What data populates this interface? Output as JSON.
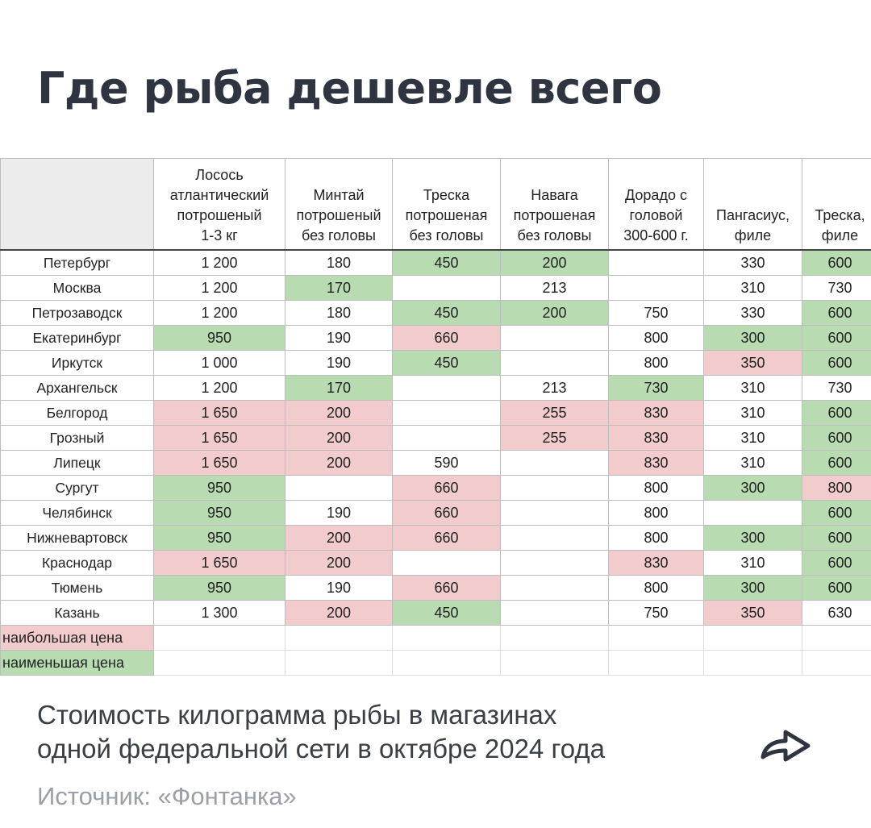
{
  "title": "Где рыба дешевле всего",
  "table": {
    "headers": [
      "",
      "Лосось\nатлантический\nпотрошеный\n1-3 кг",
      "Минтай\nпотрошеный\nбез головы",
      "Треска\nпотрошеная\nбез головы",
      "Навага\nпотрошеная\nбез головы",
      "Дорадо с\nголовой\n300-600 г.",
      "Пангасиус,\nфиле",
      "Треска,\nфиле"
    ],
    "rows": [
      {
        "city": "Петербург",
        "cells": [
          {
            "v": "1 200",
            "c": ""
          },
          {
            "v": "180",
            "c": ""
          },
          {
            "v": "450",
            "c": "lo"
          },
          {
            "v": "200",
            "c": "lo"
          },
          {
            "v": "",
            "c": ""
          },
          {
            "v": "330",
            "c": ""
          },
          {
            "v": "600",
            "c": "lo"
          }
        ]
      },
      {
        "city": "Москва",
        "cells": [
          {
            "v": "1 200",
            "c": ""
          },
          {
            "v": "170",
            "c": "lo"
          },
          {
            "v": "",
            "c": ""
          },
          {
            "v": "213",
            "c": ""
          },
          {
            "v": "",
            "c": ""
          },
          {
            "v": "310",
            "c": ""
          },
          {
            "v": "730",
            "c": ""
          }
        ]
      },
      {
        "city": "Петрозаводск",
        "cells": [
          {
            "v": "1 200",
            "c": ""
          },
          {
            "v": "180",
            "c": ""
          },
          {
            "v": "450",
            "c": "lo"
          },
          {
            "v": "200",
            "c": "lo"
          },
          {
            "v": "750",
            "c": ""
          },
          {
            "v": "330",
            "c": ""
          },
          {
            "v": "600",
            "c": "lo"
          }
        ]
      },
      {
        "city": "Екатеринбург",
        "cells": [
          {
            "v": "950",
            "c": "lo"
          },
          {
            "v": "190",
            "c": ""
          },
          {
            "v": "660",
            "c": "hi"
          },
          {
            "v": "",
            "c": ""
          },
          {
            "v": "800",
            "c": ""
          },
          {
            "v": "300",
            "c": "lo"
          },
          {
            "v": "600",
            "c": "lo"
          }
        ]
      },
      {
        "city": "Иркутск",
        "cells": [
          {
            "v": "1 000",
            "c": ""
          },
          {
            "v": "190",
            "c": ""
          },
          {
            "v": "450",
            "c": "lo"
          },
          {
            "v": "",
            "c": ""
          },
          {
            "v": "800",
            "c": ""
          },
          {
            "v": "350",
            "c": "hi"
          },
          {
            "v": "600",
            "c": "lo"
          }
        ]
      },
      {
        "city": "Архангельск",
        "cells": [
          {
            "v": "1 200",
            "c": ""
          },
          {
            "v": "170",
            "c": "lo"
          },
          {
            "v": "",
            "c": ""
          },
          {
            "v": "213",
            "c": ""
          },
          {
            "v": "730",
            "c": "lo"
          },
          {
            "v": "310",
            "c": ""
          },
          {
            "v": "730",
            "c": ""
          }
        ]
      },
      {
        "city": "Белгород",
        "cells": [
          {
            "v": "1 650",
            "c": "hi"
          },
          {
            "v": "200",
            "c": "hi"
          },
          {
            "v": "",
            "c": ""
          },
          {
            "v": "255",
            "c": "hi"
          },
          {
            "v": "830",
            "c": "hi"
          },
          {
            "v": "310",
            "c": ""
          },
          {
            "v": "600",
            "c": "lo"
          }
        ]
      },
      {
        "city": "Грозный",
        "cells": [
          {
            "v": "1 650",
            "c": "hi"
          },
          {
            "v": "200",
            "c": "hi"
          },
          {
            "v": "",
            "c": ""
          },
          {
            "v": "255",
            "c": "hi"
          },
          {
            "v": "830",
            "c": "hi"
          },
          {
            "v": "310",
            "c": ""
          },
          {
            "v": "600",
            "c": "lo"
          }
        ]
      },
      {
        "city": "Липецк",
        "cells": [
          {
            "v": "1 650",
            "c": "hi"
          },
          {
            "v": "200",
            "c": "hi"
          },
          {
            "v": "590",
            "c": ""
          },
          {
            "v": "",
            "c": ""
          },
          {
            "v": "830",
            "c": "hi"
          },
          {
            "v": "310",
            "c": ""
          },
          {
            "v": "600",
            "c": "lo"
          }
        ]
      },
      {
        "city": "Сургут",
        "cells": [
          {
            "v": "950",
            "c": "lo"
          },
          {
            "v": "",
            "c": ""
          },
          {
            "v": "660",
            "c": "hi"
          },
          {
            "v": "",
            "c": ""
          },
          {
            "v": "800",
            "c": ""
          },
          {
            "v": "300",
            "c": "lo"
          },
          {
            "v": "800",
            "c": "hi"
          }
        ]
      },
      {
        "city": "Челябинск",
        "cells": [
          {
            "v": "950",
            "c": "lo"
          },
          {
            "v": "190",
            "c": ""
          },
          {
            "v": "660",
            "c": "hi"
          },
          {
            "v": "",
            "c": ""
          },
          {
            "v": "800",
            "c": ""
          },
          {
            "v": "",
            "c": ""
          },
          {
            "v": "600",
            "c": "lo"
          }
        ]
      },
      {
        "city": "Нижневартовск",
        "cells": [
          {
            "v": "950",
            "c": "lo"
          },
          {
            "v": "200",
            "c": "hi"
          },
          {
            "v": "660",
            "c": "hi"
          },
          {
            "v": "",
            "c": ""
          },
          {
            "v": "800",
            "c": ""
          },
          {
            "v": "300",
            "c": "lo"
          },
          {
            "v": "600",
            "c": "lo"
          }
        ]
      },
      {
        "city": "Краснодар",
        "cells": [
          {
            "v": "1 650",
            "c": "hi"
          },
          {
            "v": "200",
            "c": "hi"
          },
          {
            "v": "",
            "c": ""
          },
          {
            "v": "",
            "c": ""
          },
          {
            "v": "830",
            "c": "hi"
          },
          {
            "v": "310",
            "c": ""
          },
          {
            "v": "600",
            "c": "lo"
          }
        ]
      },
      {
        "city": "Тюмень",
        "cells": [
          {
            "v": "950",
            "c": "lo"
          },
          {
            "v": "190",
            "c": ""
          },
          {
            "v": "660",
            "c": "hi"
          },
          {
            "v": "",
            "c": ""
          },
          {
            "v": "800",
            "c": ""
          },
          {
            "v": "300",
            "c": "lo"
          },
          {
            "v": "600",
            "c": "lo"
          }
        ]
      },
      {
        "city": "Казань",
        "cells": [
          {
            "v": "1 300",
            "c": ""
          },
          {
            "v": "200",
            "c": "hi"
          },
          {
            "v": "450",
            "c": "lo"
          },
          {
            "v": "",
            "c": ""
          },
          {
            "v": "750",
            "c": ""
          },
          {
            "v": "350",
            "c": "hi"
          },
          {
            "v": "630",
            "c": ""
          }
        ]
      }
    ],
    "legend": [
      {
        "label": "наибольшая цена",
        "c": "hi"
      },
      {
        "label": "наименьшая цена",
        "c": "lo"
      }
    ]
  },
  "caption": {
    "line1": "Стоимость килограмма рыбы в магазинах",
    "line2": "одной федеральной сети в октябре 2024 года"
  },
  "source": "Источник: «Фонтанка»",
  "share": {
    "icon": "share-arrow-icon"
  },
  "colors": {
    "highest": "#f2cbcc",
    "lowest": "#b8dbb2"
  }
}
